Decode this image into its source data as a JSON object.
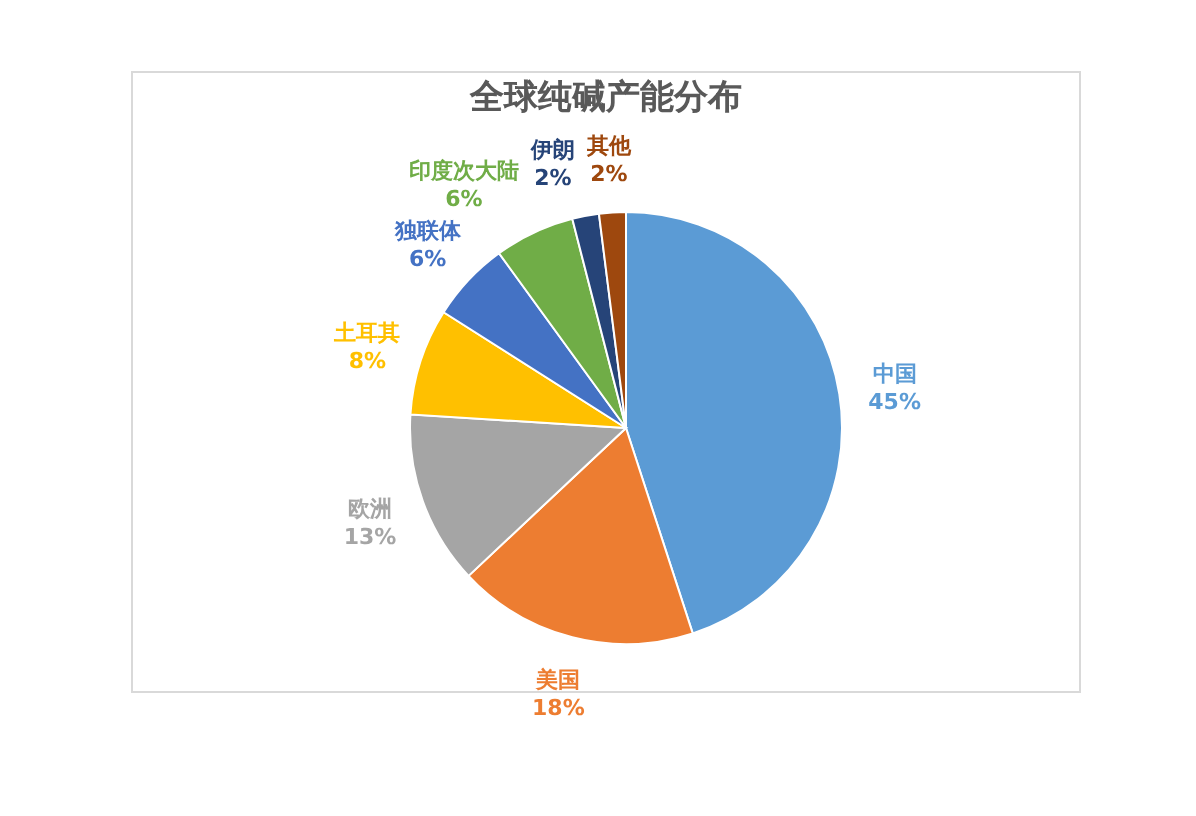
{
  "chart_data": {
    "type": "pie",
    "title": "全球纯碱产能分布",
    "categories": [
      "中国",
      "美国",
      "欧洲",
      "土耳其",
      "独联体",
      "印度次大陆",
      "伊朗",
      "其他"
    ],
    "values": [
      45,
      18,
      13,
      8,
      6,
      6,
      2,
      2
    ],
    "value_labels": [
      "45%",
      "18%",
      "13%",
      "8%",
      "6%",
      "6%",
      "2%",
      "2%"
    ],
    "colors": [
      "#5b9bd5",
      "#ed7d31",
      "#a5a5a5",
      "#ffc000",
      "#4472c4",
      "#70ad47",
      "#264478",
      "#9e480e"
    ],
    "legend": false
  }
}
